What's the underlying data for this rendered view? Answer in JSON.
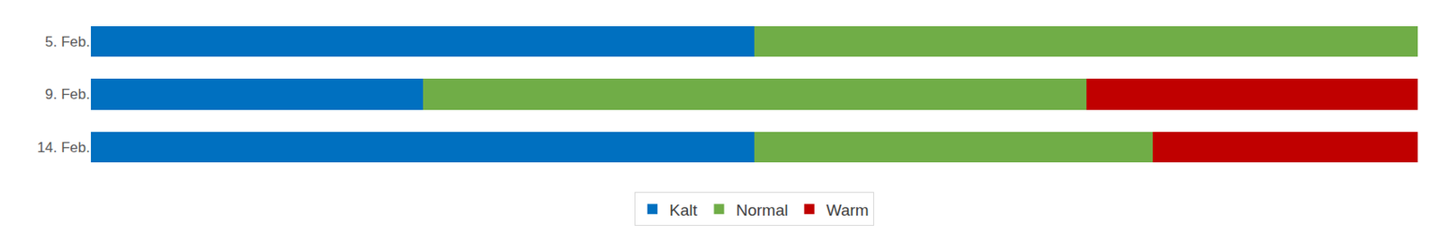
{
  "chart_data": {
    "type": "bar",
    "orientation": "horizontal",
    "stacked": true,
    "categories": [
      "5. Feb.",
      "9. Feb.",
      "14. Feb."
    ],
    "series": [
      {
        "name": "Kalt",
        "color": "#0070C0",
        "values": [
          50,
          25,
          50
        ]
      },
      {
        "name": "Normal",
        "color": "#70AD47",
        "values": [
          50,
          50,
          30
        ]
      },
      {
        "name": "Warm",
        "color": "#C00000",
        "values": [
          0,
          25,
          20
        ]
      }
    ],
    "xlim": [
      0,
      100
    ],
    "grid": false,
    "legend": "bottom",
    "tick_labels": "y"
  }
}
